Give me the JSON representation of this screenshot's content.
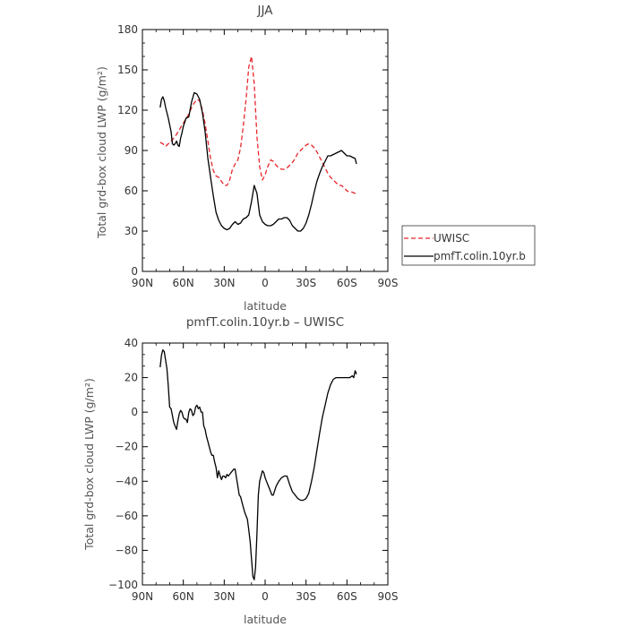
{
  "chart_data": [
    {
      "type": "line",
      "title": "JJA",
      "xlabel": "latitude",
      "ylabel": "Total grd-box cloud LWP (g/m²)",
      "ylim": [
        0,
        180
      ],
      "yticks": [
        0,
        30,
        60,
        90,
        120,
        150,
        180
      ],
      "xlim": [
        90,
        -90
      ],
      "xticks": [
        90,
        60,
        30,
        0,
        -30,
        -60,
        -90
      ],
      "xticklabels": [
        "90N",
        "60N",
        "30N",
        "0",
        "30S",
        "60S",
        "90S"
      ],
      "legend": "right-outside",
      "series": [
        {
          "name": "UWISC",
          "color": "#e8262b",
          "dash": "dashed",
          "x": [
            77,
            75,
            73,
            71,
            68,
            65,
            62,
            59,
            56,
            53,
            50,
            48,
            46,
            44,
            42,
            40,
            38,
            36,
            34,
            32,
            30,
            28,
            26,
            24,
            22,
            20,
            18,
            16,
            14,
            12,
            10,
            8,
            6,
            4,
            2,
            0,
            -2,
            -4,
            -6,
            -8,
            -10,
            -12,
            -14,
            -16,
            -18,
            -20,
            -22,
            -24,
            -26,
            -28,
            -30,
            -32,
            -34,
            -36,
            -38,
            -40,
            -42,
            -44,
            -46,
            -48,
            -50,
            -52,
            -54,
            -56,
            -58,
            -60,
            -62,
            -64,
            -66,
            -68
          ],
          "y": [
            96,
            95,
            93,
            95,
            98,
            102,
            107,
            112,
            117,
            124,
            128,
            127,
            120,
            110,
            97,
            84,
            75,
            71,
            70,
            67,
            64,
            64,
            68,
            76,
            80,
            83,
            92,
            108,
            128,
            152,
            160,
            140,
            100,
            78,
            68,
            72,
            78,
            83,
            82,
            79,
            77,
            76,
            76,
            77,
            79,
            81,
            84,
            88,
            90,
            92,
            94,
            95,
            94,
            92,
            89,
            85,
            81,
            77,
            73,
            70,
            68,
            66,
            64,
            64,
            62,
            60,
            59,
            59,
            58,
            57
          ]
        },
        {
          "name": "pmfT.colin.10yr.b",
          "color": "#000000",
          "dash": "solid",
          "x": [
            77,
            76,
            75,
            74,
            73,
            72,
            71,
            69,
            68,
            67,
            66,
            65,
            64,
            63,
            62,
            61,
            60,
            58,
            56,
            54,
            52,
            50,
            48,
            46,
            44,
            42,
            40,
            38,
            36,
            34,
            32,
            30,
            28,
            26,
            24,
            22,
            20,
            18,
            16,
            14,
            12,
            10,
            8,
            6,
            4,
            2,
            0,
            -2,
            -4,
            -6,
            -8,
            -10,
            -12,
            -14,
            -16,
            -18,
            -20,
            -22,
            -24,
            -26,
            -28,
            -30,
            -32,
            -34,
            -36,
            -38,
            -40,
            -42,
            -44,
            -46,
            -48,
            -50,
            -52,
            -54,
            -56,
            -58,
            -60,
            -62,
            -64,
            -66,
            -67
          ],
          "y": [
            122,
            128,
            130,
            127,
            122,
            118,
            114,
            104,
            95,
            94,
            95,
            97,
            94,
            93,
            99,
            103,
            108,
            114,
            115,
            126,
            133,
            132,
            128,
            118,
            104,
            84,
            70,
            56,
            44,
            38,
            34,
            32,
            31,
            32,
            35,
            37,
            35,
            36,
            39,
            40,
            42,
            52,
            64,
            58,
            42,
            37,
            35,
            34,
            34,
            35,
            37,
            39,
            39,
            40,
            40,
            38,
            34,
            32,
            30,
            30,
            32,
            36,
            42,
            50,
            59,
            67,
            73,
            78,
            82,
            86,
            86,
            87,
            88,
            89,
            90,
            88,
            86,
            86,
            85,
            84,
            80
          ]
        }
      ]
    },
    {
      "type": "line",
      "title": "pmfT.colin.10yr.b – UWISC",
      "xlabel": "latitude",
      "ylabel": "Total grd-box cloud LWP (g/m²)",
      "ylim": [
        -100,
        40
      ],
      "yticks": [
        -100,
        -80,
        -60,
        -40,
        -20,
        0,
        20,
        40
      ],
      "xlim": [
        90,
        -90
      ],
      "xticks": [
        90,
        60,
        30,
        0,
        -30,
        -60,
        -90
      ],
      "xticklabels": [
        "90N",
        "60N",
        "30N",
        "0",
        "30S",
        "60S",
        "90S"
      ],
      "series": [
        {
          "color": "#000000",
          "dash": "solid",
          "x": [
            77,
            76,
            75,
            74,
            73,
            72,
            71,
            70,
            69,
            68,
            67,
            66,
            65,
            64,
            63,
            62,
            61,
            60,
            59,
            58,
            57,
            56,
            55,
            54,
            53,
            52,
            51,
            50,
            49,
            48,
            47,
            46,
            45,
            44,
            43,
            42,
            41,
            40,
            39,
            38,
            37,
            36,
            35,
            34,
            33,
            32,
            31,
            30,
            29,
            28,
            27,
            26,
            25,
            24,
            23,
            22,
            21,
            20,
            19,
            18,
            17,
            16,
            15,
            14,
            13,
            12,
            11,
            10,
            9,
            8,
            7,
            6,
            5,
            4,
            3,
            2,
            1,
            0,
            -1,
            -2,
            -3,
            -4,
            -5,
            -6,
            -8,
            -10,
            -12,
            -14,
            -16,
            -18,
            -20,
            -22,
            -24,
            -26,
            -28,
            -30,
            -32,
            -34,
            -36,
            -38,
            -40,
            -42,
            -44,
            -46,
            -48,
            -50,
            -52,
            -54,
            -56,
            -58,
            -60,
            -62,
            -64,
            -65,
            -66,
            -67
          ],
          "y": [
            26,
            33,
            36,
            35,
            30,
            25,
            15,
            3,
            2,
            -2,
            -6,
            -8,
            -10,
            -5,
            -1,
            1,
            0,
            -3,
            -4,
            -4,
            -6,
            0,
            2,
            1,
            -2,
            -1,
            3,
            4,
            2,
            3,
            0,
            0,
            -8,
            -10,
            -14,
            -17,
            -20,
            -23,
            -25,
            -25,
            -29,
            -32,
            -38,
            -34,
            -37,
            -39,
            -37,
            -37,
            -38,
            -36,
            -37,
            -36,
            -35,
            -34,
            -33,
            -33,
            -38,
            -43,
            -48,
            -49,
            -52,
            -55,
            -58,
            -60,
            -62,
            -68,
            -75,
            -85,
            -95,
            -97,
            -90,
            -70,
            -48,
            -40,
            -37,
            -34,
            -35,
            -38,
            -40,
            -42,
            -44,
            -46,
            -48,
            -48,
            -43,
            -40,
            -38,
            -37,
            -37,
            -42,
            -46,
            -48,
            -50,
            -51,
            -51,
            -50,
            -47,
            -40,
            -32,
            -22,
            -12,
            -3,
            4,
            11,
            16,
            19,
            20,
            20,
            20,
            20,
            20,
            20,
            21,
            20,
            24,
            22
          ]
        }
      ]
    }
  ]
}
